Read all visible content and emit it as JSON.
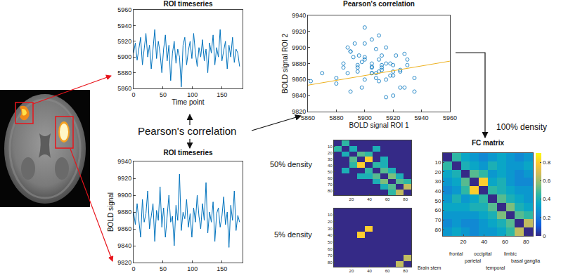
{
  "chart_data": [
    {
      "type": "line",
      "title": "ROI timeseries",
      "x_label": "Time point",
      "color": "#0072bd",
      "x": [
        0,
        3,
        6,
        9,
        12,
        15,
        18,
        21,
        24,
        27,
        30,
        33,
        36,
        39,
        42,
        45,
        48,
        51,
        54,
        57,
        60,
        63,
        66,
        69,
        72,
        75,
        78,
        81,
        84,
        87,
        90,
        93,
        96,
        99,
        102,
        105,
        108,
        111,
        114,
        117,
        120,
        123,
        126,
        129,
        132,
        135,
        138,
        141,
        144,
        147,
        150,
        153,
        156,
        159,
        162,
        165,
        168,
        171,
        174,
        177,
        180
      ],
      "values": [
        5905,
        5918,
        5896,
        5912,
        5925,
        5890,
        5908,
        5930,
        5900,
        5915,
        5885,
        5912,
        5935,
        5898,
        5920,
        5905,
        5880,
        5910,
        5928,
        5895,
        5915,
        5870,
        5905,
        5920,
        5892,
        5910,
        5900,
        5862,
        5915,
        5925,
        5890,
        5908,
        5920,
        5898,
        5930,
        5905,
        5888,
        5912,
        5900,
        5922,
        5895,
        5910,
        5880,
        5918,
        5905,
        5928,
        5890,
        5912,
        5900,
        5935,
        5895,
        5908,
        5920,
        5885,
        5915,
        5900,
        5925,
        5893,
        5910,
        5905,
        5888
      ],
      "xlim": [
        0,
        185
      ],
      "xticks": [
        0,
        50,
        100,
        150
      ],
      "ylim": [
        5860,
        5960
      ],
      "yticks": [
        5860,
        5880,
        5900,
        5920,
        5940,
        5960
      ]
    },
    {
      "type": "line",
      "title": "ROI timeseries",
      "y_label": "BOLD signal",
      "color": "#0072bd",
      "x": [
        0,
        3,
        6,
        9,
        12,
        15,
        18,
        21,
        24,
        27,
        30,
        33,
        36,
        39,
        42,
        45,
        48,
        51,
        54,
        57,
        60,
        63,
        66,
        69,
        72,
        75,
        78,
        81,
        84,
        87,
        90,
        93,
        96,
        99,
        102,
        105,
        108,
        111,
        114,
        117,
        120,
        123,
        126,
        129,
        132,
        135,
        138,
        141,
        144,
        147,
        150,
        153,
        156,
        159,
        162,
        165,
        168,
        171,
        174,
        177,
        180
      ],
      "values": [
        9880,
        9865,
        9890,
        9872,
        9850,
        9895,
        9868,
        9878,
        9905,
        9860,
        9875,
        9890,
        9845,
        9882,
        9870,
        9910,
        9862,
        9885,
        9850,
        9878,
        9900,
        9868,
        9875,
        9840,
        9888,
        9870,
        9925,
        9858,
        9880,
        9872,
        9895,
        9862,
        9878,
        9850,
        9885,
        9868,
        9900,
        9875,
        9860,
        9890,
        9870,
        9915,
        9855,
        9880,
        9868,
        9892,
        9845,
        9878,
        9885,
        9862,
        9875,
        9898,
        9865,
        9880,
        9838,
        9888,
        9870,
        9905,
        9858,
        9876,
        9868
      ],
      "xlim": [
        0,
        185
      ],
      "xticks": [
        0,
        50,
        100,
        150
      ],
      "ylim": [
        9820,
        9940
      ],
      "yticks": [
        9820,
        9840,
        9860,
        9880,
        9900,
        9920,
        9940
      ]
    },
    {
      "type": "scatter",
      "title": "Pearson's correlation",
      "x_label": "BOLD signal ROI 1",
      "y_label": "BOLD signal ROI 2",
      "color": "#0072bd",
      "marker": "open circle",
      "x": [
        5905,
        5918,
        5896,
        5912,
        5925,
        5890,
        5908,
        5930,
        5900,
        5915,
        5885,
        5912,
        5935,
        5898,
        5920,
        5905,
        5880,
        5910,
        5928,
        5895,
        5915,
        5870,
        5905,
        5920,
        5892,
        5910,
        5900,
        5862,
        5915,
        5925,
        5890,
        5908,
        5920,
        5898,
        5930,
        5905,
        5888,
        5912,
        5900,
        5922,
        5895,
        5910,
        5880,
        5918,
        5905,
        5928,
        5890,
        5912,
        5900,
        5935,
        5895,
        5908,
        5920,
        5885,
        5915,
        5900,
        5925,
        5893,
        5910,
        5905,
        5888
      ],
      "values": [
        9880,
        9865,
        9890,
        9872,
        9850,
        9895,
        9868,
        9878,
        9905,
        9860,
        9875,
        9890,
        9845,
        9882,
        9870,
        9910,
        9862,
        9885,
        9850,
        9878,
        9900,
        9868,
        9875,
        9840,
        9888,
        9870,
        9925,
        9858,
        9880,
        9872,
        9895,
        9862,
        9878,
        9850,
        9885,
        9868,
        9900,
        9875,
        9860,
        9890,
        9870,
        9915,
        9855,
        9880,
        9868,
        9892,
        9845,
        9878,
        9885,
        9862,
        9875,
        9898,
        9865,
        9880,
        9838,
        9888,
        9870,
        9905,
        9858,
        9876,
        9868
      ],
      "fit_line": {
        "x": [
          5860,
          5960
        ],
        "values": [
          9853,
          9883
        ],
        "color": "#edb120"
      },
      "xlim": [
        5860,
        5960
      ],
      "xticks": [
        5860,
        5880,
        5900,
        5920,
        5940,
        5960
      ],
      "ylim": [
        9820,
        9940
      ],
      "yticks": [
        9820,
        9840,
        9860,
        9880,
        9900,
        9920,
        9940
      ]
    },
    {
      "type": "heatmap",
      "annotations": [
        "50% density"
      ],
      "x": [
        4.8,
        13.4,
        22,
        30.6,
        39.2,
        47.8,
        56.4,
        65,
        73.6,
        82.2
      ],
      "y": [
        4.8,
        13.4,
        22,
        30.6,
        39.2,
        47.8,
        56.4,
        65,
        73.6,
        82.2
      ],
      "values": [
        [
          0,
          0.45,
          0,
          0,
          0,
          0,
          0,
          0,
          0,
          0
        ],
        [
          0.45,
          0,
          0.4,
          0,
          0,
          0.4,
          0,
          0,
          0,
          0
        ],
        [
          0,
          0.4,
          0,
          0.5,
          0.45,
          0,
          0,
          0,
          0,
          0
        ],
        [
          0,
          0,
          0.5,
          0,
          0.8,
          0,
          0.4,
          0,
          0,
          0
        ],
        [
          0,
          0,
          0.45,
          0.8,
          0,
          0.45,
          0.4,
          0,
          0,
          0
        ],
        [
          0,
          0.4,
          0,
          0,
          0.45,
          0,
          0.5,
          0.4,
          0,
          0
        ],
        [
          0,
          0,
          0,
          0.4,
          0.4,
          0.5,
          0,
          0.55,
          0.4,
          0
        ],
        [
          0,
          0,
          0,
          0,
          0,
          0.4,
          0.55,
          0,
          0.5,
          0.45
        ],
        [
          0,
          0,
          0,
          0,
          0,
          0,
          0.4,
          0.5,
          0,
          0.65
        ],
        [
          0,
          0,
          0,
          0,
          0,
          0,
          0,
          0.45,
          0.65,
          0
        ]
      ],
      "zlim": [
        0,
        0.9
      ],
      "xlim": [
        0.5,
        86.5
      ],
      "xticks": [
        20,
        40,
        60,
        80
      ],
      "ylim": [
        86.5,
        0.5
      ],
      "yticks": [
        10,
        20,
        30,
        40,
        50,
        60,
        70,
        80
      ]
    },
    {
      "type": "heatmap",
      "annotations": [
        "5% density"
      ],
      "x": [
        4.8,
        13.4,
        22,
        30.6,
        39.2,
        47.8,
        56.4,
        65,
        73.6,
        82.2
      ],
      "y": [
        4.8,
        13.4,
        22,
        30.6,
        39.2,
        47.8,
        56.4,
        65,
        73.6,
        82.2
      ],
      "values": [
        [
          0,
          0,
          0,
          0,
          0,
          0,
          0,
          0,
          0,
          0
        ],
        [
          0,
          0,
          0,
          0,
          0,
          0,
          0,
          0,
          0,
          0
        ],
        [
          0,
          0,
          0,
          0,
          0,
          0,
          0,
          0,
          0,
          0
        ],
        [
          0,
          0,
          0,
          0,
          0.8,
          0,
          0,
          0,
          0,
          0
        ],
        [
          0,
          0,
          0,
          0.8,
          0,
          0,
          0,
          0,
          0,
          0
        ],
        [
          0,
          0,
          0,
          0,
          0,
          0,
          0,
          0,
          0,
          0
        ],
        [
          0,
          0,
          0,
          0,
          0,
          0,
          0,
          0,
          0,
          0
        ],
        [
          0,
          0,
          0,
          0,
          0,
          0,
          0,
          0,
          0,
          0
        ],
        [
          0,
          0,
          0,
          0,
          0,
          0,
          0,
          0,
          0,
          0.65
        ],
        [
          0,
          0,
          0,
          0,
          0,
          0,
          0,
          0,
          0.65,
          0
        ]
      ],
      "zlim": [
        0,
        0.9
      ],
      "xlim": [
        0.5,
        86.5
      ],
      "xticks": [
        20,
        40,
        60,
        80
      ],
      "ylim": [
        86.5,
        0.5
      ],
      "yticks": [
        10,
        20,
        30,
        40,
        50,
        60,
        70,
        80
      ]
    },
    {
      "type": "heatmap",
      "title": "FC matrix",
      "annotations": [
        "100% density"
      ],
      "x": [
        4.8,
        13.4,
        22,
        30.6,
        39.2,
        47.8,
        56.4,
        65,
        73.6,
        82.2
      ],
      "y": [
        4.8,
        13.4,
        22,
        30.6,
        39.2,
        47.8,
        56.4,
        65,
        73.6,
        82.2
      ],
      "values": [
        [
          0,
          0.45,
          0.35,
          0.3,
          0.25,
          0.3,
          0.35,
          0.3,
          0.25,
          0.3
        ],
        [
          0.45,
          0,
          0.4,
          0.35,
          0.3,
          0.4,
          0.35,
          0.3,
          0.3,
          0.35
        ],
        [
          0.35,
          0.4,
          0,
          0.5,
          0.45,
          0.3,
          0.35,
          0.3,
          0.25,
          0.3
        ],
        [
          0.3,
          0.35,
          0.5,
          0,
          0.8,
          0.35,
          0.4,
          0.3,
          0.25,
          0.25
        ],
        [
          0.25,
          0.3,
          0.45,
          0.8,
          0,
          0.45,
          0.4,
          0.35,
          0.3,
          0.3
        ],
        [
          0.3,
          0.4,
          0.3,
          0.35,
          0.45,
          0,
          0.5,
          0.4,
          0.35,
          0.3
        ],
        [
          0.35,
          0.35,
          0.35,
          0.4,
          0.4,
          0.5,
          0,
          0.55,
          0.4,
          0.35
        ],
        [
          0.3,
          0.3,
          0.3,
          0.3,
          0.35,
          0.4,
          0.55,
          0,
          0.5,
          0.45
        ],
        [
          0.25,
          0.3,
          0.25,
          0.25,
          0.3,
          0.35,
          0.4,
          0.5,
          0,
          0.65
        ],
        [
          0.3,
          0.35,
          0.3,
          0.25,
          0.3,
          0.3,
          0.35,
          0.45,
          0.65,
          0
        ]
      ],
      "zlim": [
        0,
        0.9
      ],
      "zticks": [
        0,
        0.2,
        0.4,
        0.6,
        0.8
      ],
      "xlim": [
        0.5,
        86.5
      ],
      "xticks": [
        20,
        40,
        60,
        80
      ],
      "ylim": [
        86.5,
        0.5
      ],
      "yticks": [
        10,
        20,
        30,
        40,
        50,
        60,
        70,
        80
      ],
      "regions": [
        {
          "label": "Brain stem",
          "start": 0.5,
          "end": 2.5
        },
        {
          "label": "frontal",
          "start": 2.5,
          "end": 24.5
        },
        {
          "label": "parietal",
          "start": 24.5,
          "end": 33.5
        },
        {
          "label": "occipital",
          "start": 33.5,
          "end": 44.5
        },
        {
          "label": "temporal",
          "start": 44.5,
          "end": 57.5
        },
        {
          "label": "limbic",
          "start": 57.5,
          "end": 72.5
        },
        {
          "label": "basal ganglia",
          "start": 72.5,
          "end": 86.5
        }
      ]
    }
  ],
  "diagram_label": "Pearson's correlation"
}
